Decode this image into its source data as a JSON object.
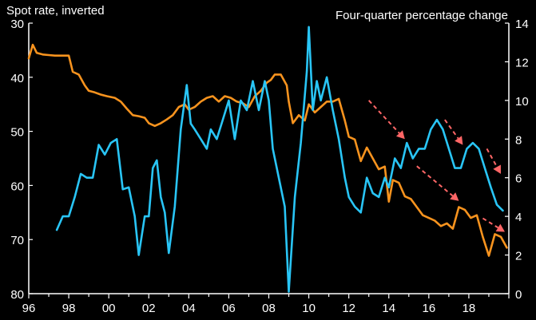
{
  "chart_data": {
    "type": "line",
    "title_left": "Spot rate, inverted",
    "title_right": "Four-quarter percentage change",
    "x_tick_labels": [
      "96",
      "98",
      "00",
      "02",
      "04",
      "06",
      "08",
      "10",
      "12",
      "14",
      "16",
      "18"
    ],
    "xlim": [
      1996,
      2020
    ],
    "y_left": {
      "ticks": [
        30,
        40,
        50,
        60,
        70,
        80
      ],
      "ylim": [
        30,
        80
      ],
      "inverted": true,
      "label": "Spot rate, inverted"
    },
    "y_right": {
      "ticks": [
        0,
        2,
        4,
        6,
        8,
        10,
        12,
        14
      ],
      "ylim": [
        0,
        14
      ],
      "label": "Four-quarter percentage change"
    },
    "series": [
      {
        "name": "Spot rate (inverted, left axis)",
        "axis": "left",
        "color": "#f7931e",
        "x": [
          1996.0,
          1996.2,
          1996.4,
          1996.7,
          1997.0,
          1997.3,
          1997.6,
          1998.0,
          1998.2,
          1998.5,
          1998.8,
          1999.0,
          1999.3,
          1999.6,
          1999.9,
          2000.3,
          2000.6,
          2000.9,
          2001.2,
          2001.5,
          2001.8,
          2002.0,
          2002.3,
          2002.6,
          2002.9,
          2003.2,
          2003.5,
          2003.8,
          2004.0,
          2004.3,
          2004.6,
          2004.9,
          2005.2,
          2005.5,
          2005.8,
          2006.1,
          2006.4,
          2006.7,
          2007.0,
          2007.3,
          2007.6,
          2007.9,
          2008.1,
          2008.3,
          2008.6,
          2008.9,
          2009.0,
          2009.2,
          2009.5,
          2009.8,
          2010.0,
          2010.3,
          2010.6,
          2010.9,
          2011.2,
          2011.5,
          2011.8,
          2012.0,
          2012.3,
          2012.6,
          2012.9,
          2013.2,
          2013.5,
          2013.8,
          2014.0,
          2014.2,
          2014.5,
          2014.8,
          2015.1,
          2015.4,
          2015.7,
          2016.0,
          2016.3,
          2016.6,
          2016.9,
          2017.2,
          2017.5,
          2017.8,
          2018.1,
          2018.4,
          2018.7,
          2019.0,
          2019.3,
          2019.6,
          2019.9
        ],
        "y": [
          36.5,
          34.0,
          35.5,
          35.8,
          35.9,
          36.0,
          36.0,
          36.0,
          39.0,
          39.5,
          41.5,
          42.5,
          42.8,
          43.2,
          43.5,
          43.8,
          44.5,
          45.8,
          47.0,
          47.2,
          47.5,
          48.5,
          49.0,
          48.5,
          47.8,
          47.0,
          45.5,
          45.0,
          46.0,
          45.5,
          44.5,
          43.8,
          43.5,
          44.5,
          43.5,
          43.8,
          44.5,
          44.8,
          45.5,
          43.5,
          42.5,
          41.0,
          40.5,
          39.5,
          39.5,
          41.5,
          44.5,
          48.5,
          47.0,
          48.0,
          45.0,
          46.5,
          45.5,
          44.5,
          44.5,
          44.0,
          48.0,
          51.0,
          51.5,
          55.5,
          53.0,
          55.0,
          57.0,
          56.5,
          63.0,
          59.0,
          59.5,
          62.0,
          62.5,
          64.0,
          65.5,
          66.0,
          66.5,
          67.5,
          67.0,
          68.0,
          64.0,
          64.5,
          66.0,
          65.5,
          69.5,
          73.0,
          69.0,
          69.5,
          71.5
        ]
      },
      {
        "name": "Four-quarter percentage change (right axis)",
        "axis": "right",
        "color": "#29c5f6",
        "x": [
          1997.4,
          1997.7,
          1998.0,
          1998.3,
          1998.6,
          1998.9,
          1999.2,
          1999.5,
          1999.8,
          2000.1,
          2000.4,
          2000.7,
          2001.0,
          2001.3,
          2001.5,
          2001.8,
          2002.0,
          2002.2,
          2002.4,
          2002.6,
          2002.8,
          2003.0,
          2003.3,
          2003.6,
          2003.9,
          2004.1,
          2004.3,
          2004.6,
          2004.9,
          2005.1,
          2005.4,
          2005.7,
          2006.0,
          2006.3,
          2006.6,
          2006.9,
          2007.2,
          2007.5,
          2007.8,
          2008.0,
          2008.2,
          2008.5,
          2008.8,
          2009.0,
          2009.3,
          2009.6,
          2009.9,
          2010.0,
          2010.2,
          2010.4,
          2010.6,
          2010.9,
          2011.2,
          2011.5,
          2011.8,
          2012.0,
          2012.3,
          2012.6,
          2012.9,
          2013.2,
          2013.5,
          2013.8,
          2014.0,
          2014.3,
          2014.6,
          2014.9,
          2015.2,
          2015.5,
          2015.8,
          2016.1,
          2016.4,
          2016.7,
          2017.0,
          2017.3,
          2017.6,
          2017.9,
          2018.2,
          2018.5,
          2018.8,
          2019.1,
          2019.4,
          2019.7
        ],
        "y": [
          3.3,
          4.0,
          4.0,
          5.0,
          6.2,
          6.0,
          6.0,
          7.7,
          7.2,
          7.8,
          8.0,
          5.4,
          5.5,
          4.0,
          2.0,
          4.0,
          4.0,
          6.5,
          6.9,
          5.0,
          4.2,
          2.1,
          4.5,
          8.5,
          10.8,
          8.8,
          8.5,
          8.0,
          7.5,
          8.5,
          8.0,
          9.0,
          10.0,
          8.0,
          10.0,
          9.5,
          11.0,
          9.5,
          11.0,
          10.0,
          7.5,
          6.0,
          4.5,
          0.1,
          5.0,
          7.8,
          11.5,
          13.8,
          9.5,
          11.0,
          10.0,
          11.2,
          9.5,
          8.0,
          6.0,
          5.0,
          4.5,
          4.2,
          6.0,
          5.2,
          5.0,
          6.0,
          5.5,
          7.0,
          6.5,
          7.8,
          7.0,
          7.5,
          7.5,
          8.5,
          9.0,
          8.5,
          7.5,
          6.5,
          6.5,
          7.5,
          7.8,
          7.5,
          6.5,
          5.5,
          4.6,
          4.3
        ]
      }
    ],
    "annotations": [
      {
        "type": "arrow",
        "color": "#ff6666",
        "style": "dashed",
        "from": [
          2013.0,
          10.0
        ],
        "to": [
          2014.8,
          8.0
        ],
        "axis": "right"
      },
      {
        "type": "arrow",
        "color": "#ff6666",
        "style": "dashed",
        "from": [
          2016.8,
          9.0
        ],
        "to": [
          2017.7,
          7.7
        ],
        "axis": "right"
      },
      {
        "type": "arrow",
        "color": "#ff6666",
        "style": "dashed",
        "from": [
          2018.9,
          7.5
        ],
        "to": [
          2019.6,
          6.2
        ],
        "axis": "right"
      },
      {
        "type": "arrow",
        "color": "#ff6666",
        "style": "dashed",
        "from": [
          2015.4,
          6.6
        ],
        "to": [
          2017.5,
          4.8
        ],
        "axis": "right"
      },
      {
        "type": "arrow",
        "color": "#ff6666",
        "style": "dashed",
        "from": [
          2018.7,
          3.9
        ],
        "to": [
          2019.8,
          3.2
        ],
        "axis": "right"
      }
    ],
    "background_color": "#000000",
    "axis_color": "#ffffff"
  }
}
